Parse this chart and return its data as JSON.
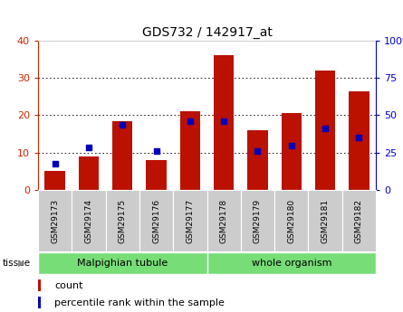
{
  "title": "GDS732 / 142917_at",
  "categories": [
    "GSM29173",
    "GSM29174",
    "GSM29175",
    "GSM29176",
    "GSM29177",
    "GSM29178",
    "GSM29179",
    "GSM29180",
    "GSM29181",
    "GSM29182"
  ],
  "counts": [
    5,
    9,
    18.5,
    8,
    21,
    36,
    16,
    20.5,
    32,
    26.5
  ],
  "percentile_ranks_pct": [
    17.5,
    28.75,
    43.75,
    26.25,
    46.25,
    46.25,
    26.25,
    30,
    41.25,
    35
  ],
  "ylim_left": [
    0,
    40
  ],
  "ylim_right": [
    0,
    100
  ],
  "yticks_left": [
    0,
    10,
    20,
    30,
    40
  ],
  "yticks_right": [
    0,
    25,
    50,
    75,
    100
  ],
  "bar_color": "#bb1100",
  "dot_color": "#0000bb",
  "tissue_labels": [
    "Malpighian tubule",
    "whole organism"
  ],
  "tissue_color": "#77dd77",
  "tissue_split": 5,
  "legend_count_label": "count",
  "legend_pct_label": "percentile rank within the sample",
  "tick_bg_color": "#cccccc",
  "grid_color": "#000000",
  "title_fontsize": 10,
  "axis_color_left": "#cc2200",
  "axis_color_right": "#0000cc",
  "n_bars": 10
}
